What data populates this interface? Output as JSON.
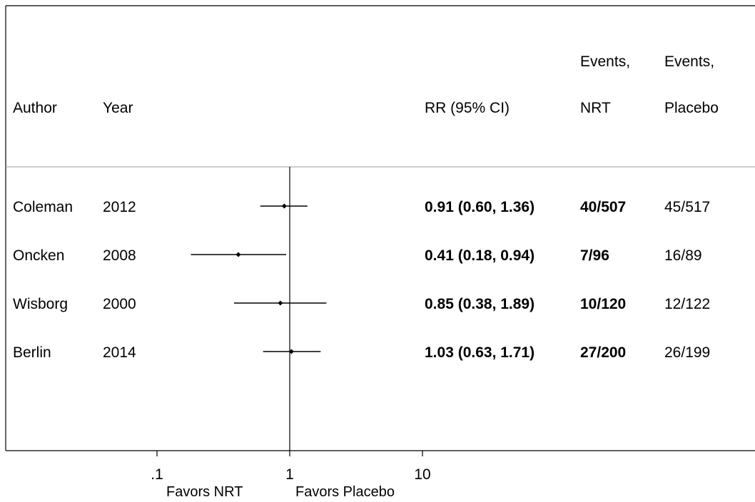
{
  "chart_data": {
    "type": "forest",
    "x_scale": "log",
    "x_ticks": [
      {
        "value": 0.1,
        "label": ".1"
      },
      {
        "value": 1,
        "label": "1"
      },
      {
        "value": 10,
        "label": "10"
      }
    ],
    "reference_line": 1,
    "favors_left": "Favors NRT",
    "favors_right": "Favors Placebo",
    "headers": {
      "author": "Author",
      "year": "Year",
      "rr": "RR (95% CI)",
      "events_nrt_line1": "Events,",
      "events_nrt_line2": "NRT",
      "events_placebo_line1": "Events,",
      "events_placebo_line2": "Placebo"
    },
    "studies": [
      {
        "author": "Coleman",
        "year": "2012",
        "rr": 0.91,
        "lo": 0.6,
        "hi": 1.36,
        "rr_text": "0.91 (0.60, 1.36)",
        "events_nrt": "40/507",
        "events_placebo": "45/517"
      },
      {
        "author": "Oncken",
        "year": "2008",
        "rr": 0.41,
        "lo": 0.18,
        "hi": 0.94,
        "rr_text": "0.41 (0.18, 0.94)",
        "events_nrt": "7/96",
        "events_placebo": "16/89"
      },
      {
        "author": "Wisborg",
        "year": "2000",
        "rr": 0.85,
        "lo": 0.38,
        "hi": 1.89,
        "rr_text": "0.85 (0.38, 1.89)",
        "events_nrt": "10/120",
        "events_placebo": "12/122"
      },
      {
        "author": "Berlin",
        "year": "2014",
        "rr": 1.03,
        "lo": 0.63,
        "hi": 1.71,
        "rr_text": "1.03 (0.63, 1.71)",
        "events_nrt": "27/200",
        "events_placebo": "26/199"
      }
    ]
  }
}
